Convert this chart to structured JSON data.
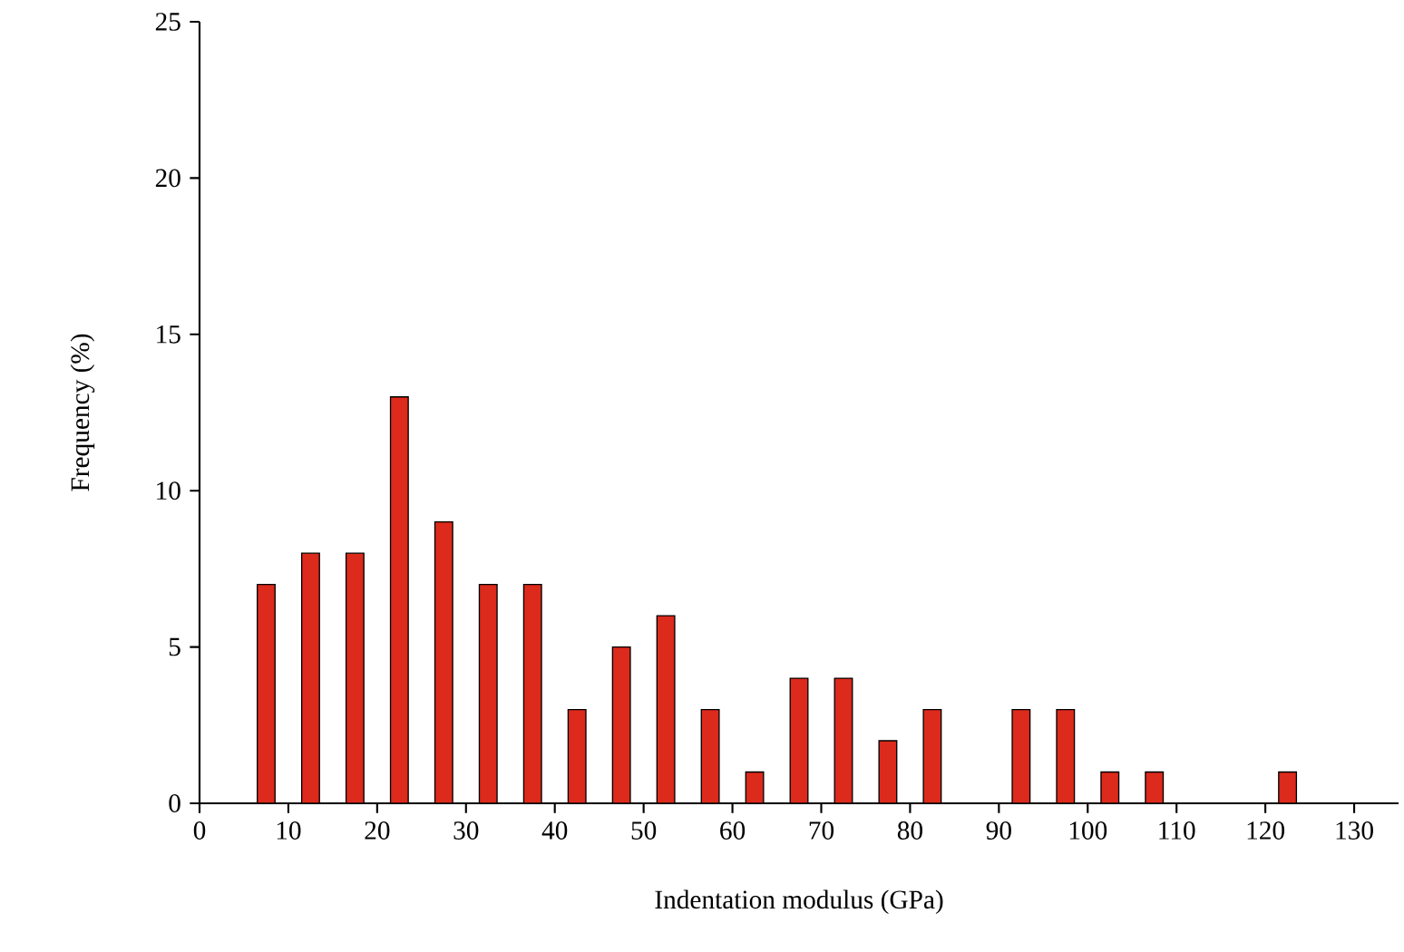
{
  "chart_data": {
    "type": "bar",
    "xlabel": "Indentation modulus (GPa)",
    "ylabel": "Frequency (%)",
    "x": [
      7.5,
      12.5,
      17.5,
      22.5,
      27.5,
      32.5,
      37.5,
      42.5,
      47.5,
      52.5,
      57.5,
      62.5,
      67.5,
      72.5,
      77.5,
      82.5,
      87.5,
      92.5,
      97.5,
      102.5,
      107.5,
      112.5,
      117.5,
      122.5
    ],
    "values": [
      7,
      8,
      8,
      13,
      9,
      7,
      7,
      3,
      5,
      6,
      3,
      1,
      4,
      4,
      2,
      3,
      null,
      3,
      3,
      1,
      1,
      null,
      null,
      1
    ],
    "color": "#dc2a1c",
    "xlim": [
      0,
      135
    ],
    "xticks": [
      0,
      10,
      20,
      30,
      40,
      50,
      60,
      70,
      80,
      90,
      100,
      110,
      120,
      130
    ],
    "ylim": [
      0,
      25
    ],
    "yticks": [
      0,
      5,
      10,
      15,
      20,
      25
    ],
    "grid": false
  }
}
